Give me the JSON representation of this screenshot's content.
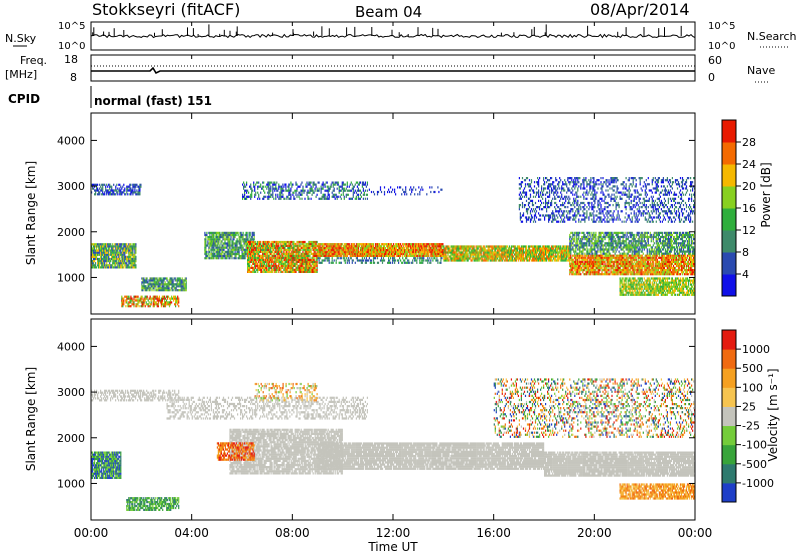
{
  "header": {
    "station": "Stokkseyri (fitACF)",
    "beam": "Beam 04",
    "date": "08/Apr/2014"
  },
  "top_panels": {
    "nsky_label": "N.Sky",
    "nsky_ticks": [
      "10^5",
      "10^0"
    ],
    "nsearch_label": "N.Search",
    "nsearch_ticks": [
      "10^5",
      "10^0"
    ],
    "freq_label": "Freq.",
    "freq_unit": "[MHz]",
    "freq_ticks": [
      "18",
      "8"
    ],
    "nave_label": "Nave",
    "nave_ticks": [
      "60",
      "0"
    ],
    "cpid_label": "CPID",
    "cpid_value": "normal (fast) 151"
  },
  "chart_data": [
    {
      "type": "heatmap",
      "name": "power",
      "ylabel": "Slant Range [km]",
      "ylim": [
        200,
        4600
      ],
      "yticks": [
        "1000",
        "2000",
        "3000",
        "4000"
      ],
      "colorbar_label": "Power [dB]",
      "colorbar_ticks": [
        "4",
        "8",
        "12",
        "16",
        "20",
        "24",
        "28"
      ],
      "colors": [
        "#1010e8",
        "#2a4ab0",
        "#3e8a6a",
        "#2fae3c",
        "#88d020",
        "#f5b800",
        "#f46a00",
        "#e81a00"
      ]
    },
    {
      "type": "heatmap",
      "name": "velocity",
      "ylabel": "Slant Range [km]",
      "ylim": [
        200,
        4600
      ],
      "yticks": [
        "1000",
        "2000",
        "3000",
        "4000"
      ],
      "colorbar_label": "Velocity [m s⁻¹]",
      "colorbar_ticks": [
        "1000",
        "500",
        "100",
        "25",
        "-25",
        "-100",
        "-500",
        "-1000"
      ],
      "colors": [
        "#1e3fc8",
        "#2e7a6e",
        "#38a43a",
        "#74cc3a",
        "#c4c4bc",
        "#f6c450",
        "#f5a020",
        "#f06a10",
        "#e41b10"
      ]
    }
  ],
  "xaxis": {
    "label": "Time UT",
    "ticks": [
      "00:00",
      "04:00",
      "08:00",
      "12:00",
      "16:00",
      "20:00",
      "00:00"
    ]
  }
}
